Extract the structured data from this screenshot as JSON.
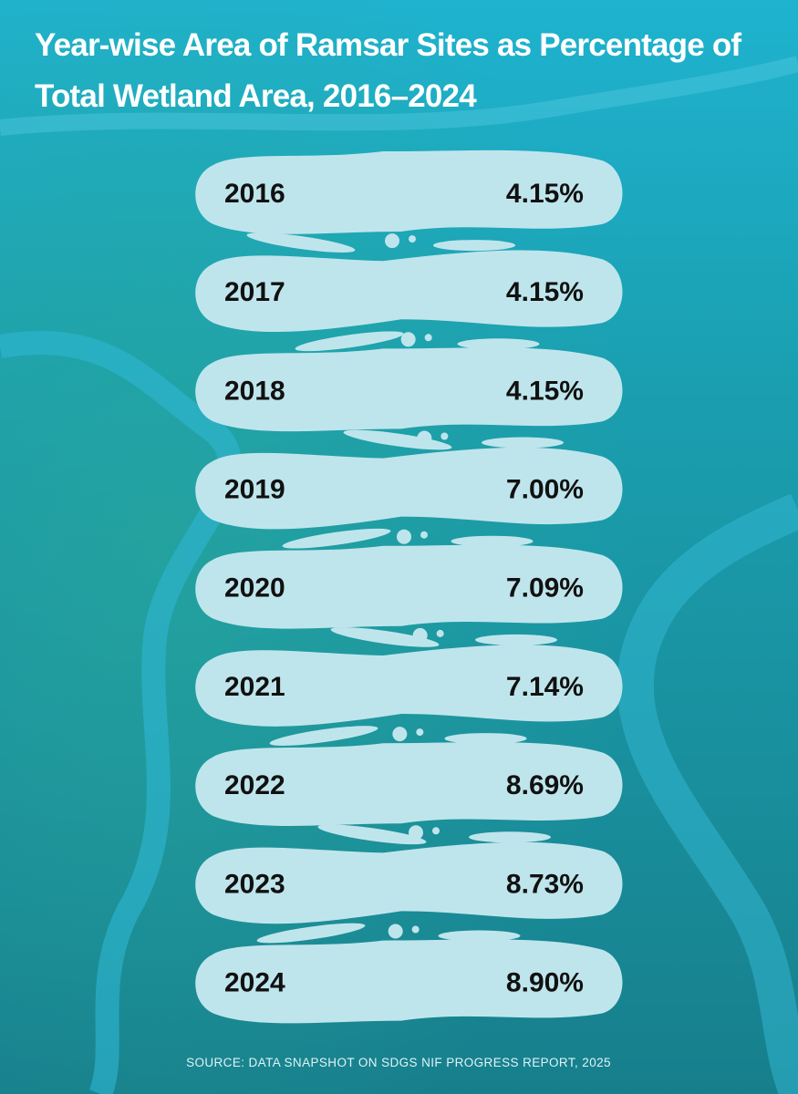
{
  "header": {
    "title_line1": "Year-wise Area of Ramsar Sites as Percentage of",
    "title_line2": "Total Wetland Area, 2016–2024"
  },
  "rows": [
    {
      "year": "2016",
      "value": "4.15%"
    },
    {
      "year": "2017",
      "value": "4.15%"
    },
    {
      "year": "2018",
      "value": "4.15%"
    },
    {
      "year": "2019",
      "value": "7.00%"
    },
    {
      "year": "2020",
      "value": "7.09%"
    },
    {
      "year": "2021",
      "value": "7.14%"
    },
    {
      "year": "2022",
      "value": "8.69%"
    },
    {
      "year": "2023",
      "value": "8.73%"
    },
    {
      "year": "2024",
      "value": "8.90%"
    }
  ],
  "footer": {
    "source": "SOURCE: DATA SNAPSHOT ON SDGS NIF PROGRESS REPORT, 2025"
  }
}
